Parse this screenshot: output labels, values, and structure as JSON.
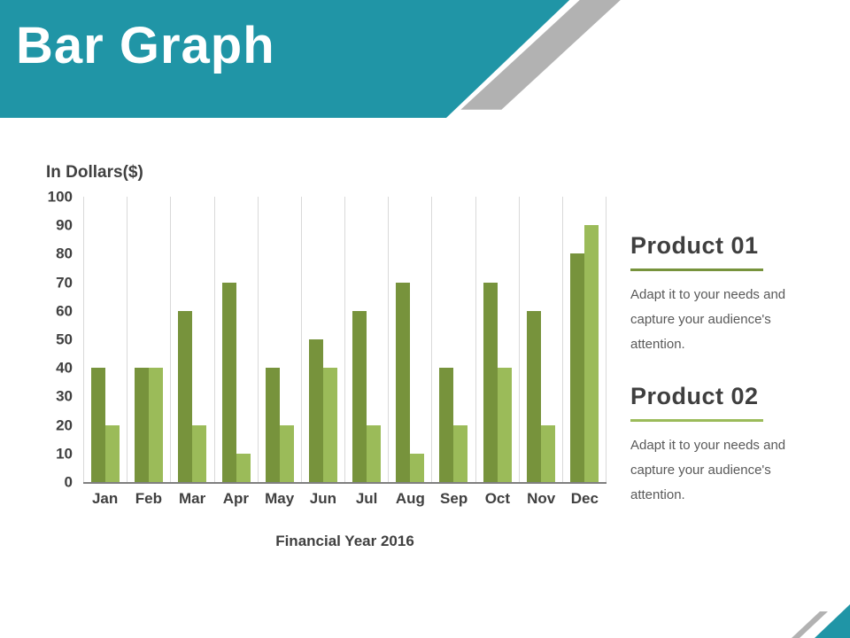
{
  "slide": {
    "title": "Bar Graph",
    "accent_teal": "#2095a6",
    "accent_gray": "#b2b2b2"
  },
  "chart_data": {
    "type": "bar",
    "title": "In Dollars($)",
    "xlabel": "Financial Year 2016",
    "ylabel": "",
    "ylim": [
      0,
      100
    ],
    "yticks": [
      100,
      90,
      80,
      70,
      60,
      50,
      40,
      30,
      20,
      10,
      0
    ],
    "grid": "vertical-only",
    "legend_position": "right-panel",
    "categories": [
      "Jan",
      "Feb",
      "Mar",
      "Apr",
      "May",
      "Jun",
      "Jul",
      "Aug",
      "Sep",
      "Oct",
      "Nov",
      "Dec"
    ],
    "series": [
      {
        "name": "Product 01",
        "color": "#77933c",
        "values": [
          40,
          40,
          60,
          70,
          40,
          50,
          60,
          70,
          40,
          70,
          60,
          80
        ]
      },
      {
        "name": "Product 02",
        "color": "#9bbb59",
        "values": [
          20,
          40,
          20,
          10,
          20,
          40,
          20,
          10,
          20,
          40,
          20,
          90
        ]
      }
    ]
  },
  "legend": {
    "items": [
      {
        "title": "Product 01",
        "color": "#77933c",
        "description": "Adapt it to your needs and capture your audience's attention."
      },
      {
        "title": "Product 02",
        "color": "#9bbb59",
        "description": "Adapt it to your needs and capture your audience's attention."
      }
    ]
  }
}
